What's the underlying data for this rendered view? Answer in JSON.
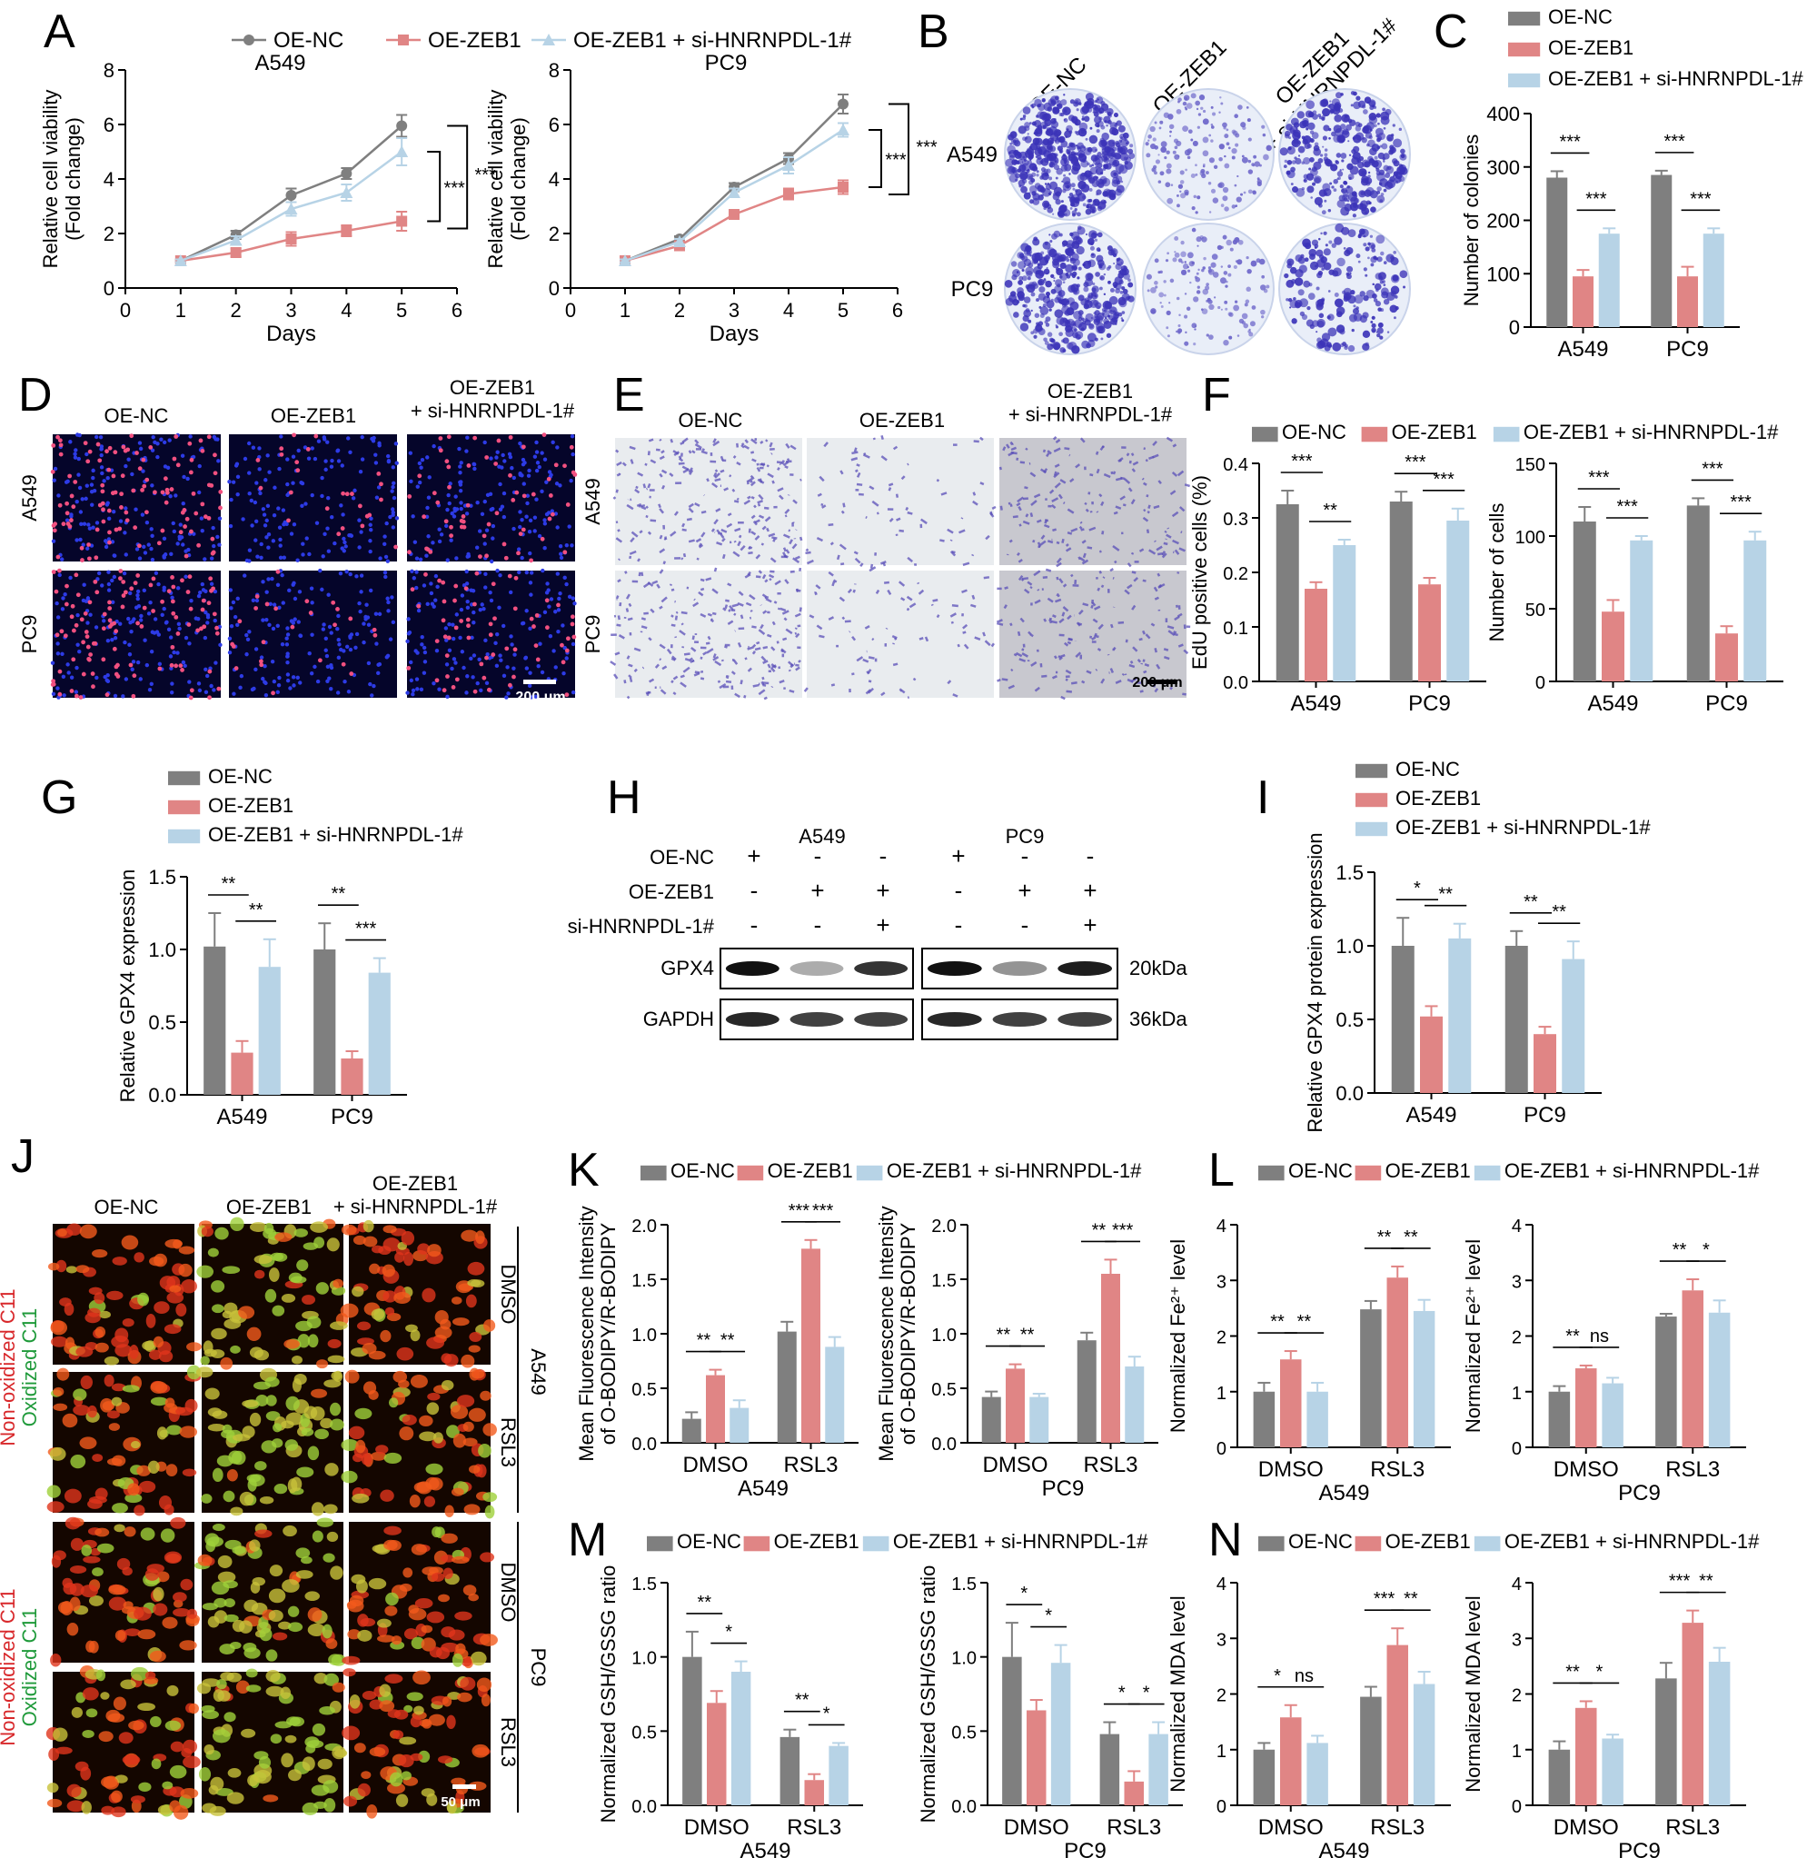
{
  "colors": {
    "oe_nc": "#7f7f7f",
    "oe_zeb1": "#e08585",
    "si": "#b7d3e6"
  },
  "series": [
    "OE-NC",
    "OE-ZEB1",
    "OE-ZEB1 + si-HNRNPDL-1#"
  ],
  "panels": {
    "A": {
      "letter": "A",
      "xlabel": "Days",
      "ylabel": "Relative cell viability (Fold change)",
      "charts": [
        {
          "title": "A549",
          "x": [
            1,
            2,
            3,
            4,
            5
          ],
          "series": [
            {
              "name": "OE-NC",
              "values": [
                1.0,
                1.95,
                3.4,
                4.2,
                5.95
              ],
              "err": [
                0.05,
                0.15,
                0.25,
                0.2,
                0.4
              ]
            },
            {
              "name": "OE-ZEB1",
              "values": [
                1.0,
                1.3,
                1.8,
                2.1,
                2.45
              ],
              "err": [
                0.05,
                0.15,
                0.25,
                0.2,
                0.35
              ]
            },
            {
              "name": "OE-ZEB1 + si-HNRNPDL-1#",
              "values": [
                1.0,
                1.75,
                2.9,
                3.5,
                5.0
              ],
              "err": [
                0.05,
                0.15,
                0.25,
                0.3,
                0.5
              ]
            }
          ],
          "ylim": [
            0,
            8
          ],
          "xlim": [
            0,
            6
          ],
          "sig": [
            "***",
            "***"
          ]
        },
        {
          "title": "PC9",
          "x": [
            1,
            2,
            3,
            4,
            5
          ],
          "series": [
            {
              "name": "OE-NC",
              "values": [
                1.0,
                1.8,
                3.7,
                4.75,
                6.75
              ],
              "err": [
                0.05,
                0.1,
                0.15,
                0.2,
                0.35
              ]
            },
            {
              "name": "OE-ZEB1",
              "values": [
                1.0,
                1.55,
                2.7,
                3.45,
                3.7
              ],
              "err": [
                0.05,
                0.1,
                0.15,
                0.2,
                0.25
              ]
            },
            {
              "name": "OE-ZEB1 + si-HNRNPDL-1#",
              "values": [
                1.0,
                1.7,
                3.5,
                4.5,
                5.8
              ],
              "err": [
                0.05,
                0.1,
                0.15,
                0.3,
                0.25
              ]
            }
          ],
          "ylim": [
            0,
            8
          ],
          "xlim": [
            0,
            6
          ],
          "sig": [
            "***",
            "***"
          ]
        }
      ]
    },
    "B": {
      "letter": "B",
      "cols": [
        "OE-NC",
        "OE-ZEB1",
        "OE-ZEB1\n+ si-HNRNPDL-1#"
      ],
      "rows": [
        "A549",
        "PC9"
      ]
    },
    "C": {
      "letter": "C",
      "ylabel": "Number of colonies",
      "ylim": [
        0,
        400
      ],
      "ticks": [
        0,
        100,
        200,
        300,
        400
      ],
      "groups": [
        "A549",
        "PC9"
      ],
      "values": [
        [
          280,
          95,
          175
        ],
        [
          285,
          95,
          175
        ]
      ],
      "err": [
        [
          12,
          12,
          10
        ],
        [
          8,
          18,
          10
        ]
      ],
      "sig": [
        [
          "***",
          "***"
        ],
        [
          "***",
          "***"
        ]
      ]
    },
    "D": {
      "letter": "D",
      "cols": [
        "OE-NC",
        "OE-ZEB1",
        "OE-ZEB1\n+ si-HNRNPDL-1#"
      ],
      "rows": [
        "A549",
        "PC9"
      ],
      "scale": "200 μm"
    },
    "E": {
      "letter": "E",
      "cols": [
        "OE-NC",
        "OE-ZEB1",
        "OE-ZEB1\n+ si-HNRNPDL-1#"
      ],
      "rows": [
        "A549",
        "PC9"
      ],
      "scale": "200 μm"
    },
    "F": {
      "letter": "F",
      "charts": [
        {
          "ylabel": "EdU positive cells (%)",
          "ylim": [
            0,
            0.4
          ],
          "ticks": [
            "0.0",
            "0.1",
            "0.2",
            "0.3",
            "0.4"
          ],
          "groups": [
            "A549",
            "PC9"
          ],
          "values": [
            [
              0.325,
              0.17,
              0.25
            ],
            [
              0.33,
              0.178,
              0.295
            ]
          ],
          "err": [
            [
              0.025,
              0.012,
              0.01
            ],
            [
              0.018,
              0.012,
              0.022
            ]
          ],
          "sig": [
            [
              "***",
              "**"
            ],
            [
              "***",
              "***"
            ]
          ]
        },
        {
          "ylabel": "Number of cells",
          "ylim": [
            0,
            150
          ],
          "ticks": [
            "0",
            "50",
            "100",
            "150"
          ],
          "groups": [
            "A549",
            "PC9"
          ],
          "values": [
            [
              110,
              48,
              97
            ],
            [
              121,
              33,
              97
            ]
          ],
          "err": [
            [
              10,
              8,
              3
            ],
            [
              5,
              5,
              6
            ]
          ],
          "sig": [
            [
              "***",
              "***"
            ],
            [
              "***",
              "***"
            ]
          ]
        }
      ]
    },
    "G": {
      "letter": "G",
      "ylabel": "Relative GPX4 expression",
      "ylim": [
        0,
        1.5
      ],
      "ticks": [
        "0.0",
        "0.5",
        "1.0",
        "1.5"
      ],
      "groups": [
        "A549",
        "PC9"
      ],
      "values": [
        [
          1.02,
          0.29,
          0.88
        ],
        [
          1.0,
          0.25,
          0.84
        ]
      ],
      "err": [
        [
          0.23,
          0.08,
          0.19
        ],
        [
          0.18,
          0.05,
          0.1
        ]
      ],
      "sig": [
        [
          "**",
          "**"
        ],
        [
          "**",
          "***"
        ]
      ]
    },
    "H": {
      "letter": "H",
      "groups": [
        "A549",
        "PC9"
      ],
      "rows": [
        {
          "label": "OE-NC",
          "marks": [
            "+",
            "-",
            "-",
            "+",
            "-",
            "-"
          ]
        },
        {
          "label": "OE-ZEB1",
          "marks": [
            "-",
            "+",
            "+",
            "-",
            "+",
            "+"
          ]
        },
        {
          "label": "si-HNRNPDL-1#",
          "marks": [
            "-",
            "-",
            "+",
            "-",
            "-",
            "+"
          ]
        }
      ],
      "blots": [
        {
          "name": "GPX4",
          "kda": "20kDa"
        },
        {
          "name": "GAPDH",
          "kda": "36kDa"
        }
      ]
    },
    "I": {
      "letter": "I",
      "ylabel": "Relative GPX4 protein expression",
      "ylim": [
        0,
        1.5
      ],
      "ticks": [
        "0.0",
        "0.5",
        "1.0",
        "1.5"
      ],
      "groups": [
        "A549",
        "PC9"
      ],
      "values": [
        [
          1.0,
          0.52,
          1.05
        ],
        [
          1.0,
          0.4,
          0.91
        ]
      ],
      "err": [
        [
          0.19,
          0.07,
          0.1
        ],
        [
          0.1,
          0.05,
          0.12
        ]
      ],
      "sig": [
        [
          "*",
          "**"
        ],
        [
          "**",
          "**"
        ]
      ]
    },
    "J": {
      "letter": "J",
      "cols": [
        "OE-NC",
        "OE-ZEB1",
        "OE-ZEB1\n+ si-HNRNPDL-1#"
      ],
      "rows": [
        "DMSO",
        "RSL3",
        "DMSO",
        "RSL3"
      ],
      "cells": [
        "A549",
        "PC9"
      ],
      "side_red": "Non-oxidized C11",
      "side_green": "Oxidized C11",
      "scale": "50 μm"
    },
    "K": {
      "letter": "K",
      "charts": [
        {
          "ylabel": "Mean Fluorescence Intensity\nof O-BODIPY/R-BODIPY",
          "cell": "A549",
          "ylim": [
            0,
            2.0
          ],
          "ticks": [
            "0.0",
            "0.5",
            "1.0",
            "1.5",
            "2.0"
          ],
          "groups": [
            "DMSO",
            "RSL3"
          ],
          "values": [
            [
              0.22,
              0.62,
              0.32
            ],
            [
              1.02,
              1.78,
              0.88
            ]
          ],
          "err": [
            [
              0.06,
              0.05,
              0.07
            ],
            [
              0.09,
              0.08,
              0.09
            ]
          ],
          "sig": [
            [
              "**",
              "**"
            ],
            [
              "***",
              "***"
            ]
          ]
        },
        {
          "ylabel": "Mean Fluorescence Intensity\nof O-BODIPY/R-BODIPY",
          "cell": "PC9",
          "ylim": [
            0,
            2.0
          ],
          "ticks": [
            "0.0",
            "0.5",
            "1.0",
            "1.5",
            "2.0"
          ],
          "groups": [
            "DMSO",
            "RSL3"
          ],
          "values": [
            [
              0.42,
              0.68,
              0.42
            ],
            [
              0.94,
              1.55,
              0.7
            ]
          ],
          "err": [
            [
              0.05,
              0.04,
              0.03
            ],
            [
              0.07,
              0.13,
              0.09
            ]
          ],
          "sig": [
            [
              "**",
              "**"
            ],
            [
              "**",
              "***"
            ]
          ]
        }
      ]
    },
    "L": {
      "letter": "L",
      "charts": [
        {
          "ylabel": "Normalized Fe²⁺ level",
          "cell": "A549",
          "ylim": [
            0,
            4
          ],
          "ticks": [
            "0",
            "1",
            "2",
            "3",
            "4"
          ],
          "groups": [
            "DMSO",
            "RSL3"
          ],
          "values": [
            [
              1.0,
              1.58,
              1.0
            ],
            [
              2.48,
              3.05,
              2.45
            ]
          ],
          "err": [
            [
              0.16,
              0.15,
              0.16
            ],
            [
              0.15,
              0.2,
              0.2
            ]
          ],
          "sig": [
            [
              "**",
              "**"
            ],
            [
              "**",
              "**"
            ]
          ]
        },
        {
          "ylabel": "Normalized Fe²⁺ level",
          "cell": "PC9",
          "ylim": [
            0,
            4
          ],
          "ticks": [
            "0",
            "1",
            "2",
            "3",
            "4"
          ],
          "groups": [
            "DMSO",
            "RSL3"
          ],
          "values": [
            [
              1.0,
              1.42,
              1.15
            ],
            [
              2.35,
              2.82,
              2.42
            ]
          ],
          "err": [
            [
              0.1,
              0.05,
              0.1
            ],
            [
              0.05,
              0.2,
              0.22
            ]
          ],
          "sig": [
            [
              "**",
              "ns"
            ],
            [
              "**",
              "*"
            ]
          ]
        }
      ]
    },
    "M": {
      "letter": "M",
      "charts": [
        {
          "ylabel": "Normalized GSH/GSSG ratio",
          "cell": "A549",
          "ylim": [
            0,
            1.5
          ],
          "ticks": [
            "0.0",
            "0.5",
            "1.0",
            "1.5"
          ],
          "groups": [
            "DMSO",
            "RSL3"
          ],
          "values": [
            [
              1.0,
              0.69,
              0.9
            ],
            [
              0.46,
              0.17,
              0.4
            ]
          ],
          "err": [
            [
              0.17,
              0.08,
              0.07
            ],
            [
              0.05,
              0.04,
              0.02
            ]
          ],
          "sig": [
            [
              "**",
              "*"
            ],
            [
              "**",
              "*"
            ]
          ]
        },
        {
          "ylabel": "Normalized GSH/GSSG ratio",
          "cell": "PC9",
          "ylim": [
            0,
            1.5
          ],
          "ticks": [
            "0.0",
            "0.5",
            "1.0",
            "1.5"
          ],
          "groups": [
            "DMSO",
            "RSL3"
          ],
          "values": [
            [
              1.0,
              0.64,
              0.96
            ],
            [
              0.48,
              0.16,
              0.48
            ]
          ],
          "err": [
            [
              0.23,
              0.07,
              0.12
            ],
            [
              0.08,
              0.07,
              0.08
            ]
          ],
          "sig": [
            [
              "*",
              "*"
            ],
            [
              "*",
              "*"
            ]
          ]
        }
      ]
    },
    "N": {
      "letter": "N",
      "charts": [
        {
          "ylabel": "Normalized MDA level",
          "cell": "A549",
          "ylim": [
            0,
            4
          ],
          "ticks": [
            "0",
            "1",
            "2",
            "3",
            "4"
          ],
          "groups": [
            "DMSO",
            "RSL3"
          ],
          "values": [
            [
              1.0,
              1.58,
              1.12
            ],
            [
              1.95,
              2.88,
              2.18
            ]
          ],
          "err": [
            [
              0.12,
              0.22,
              0.13
            ],
            [
              0.18,
              0.3,
              0.22
            ]
          ],
          "sig": [
            [
              "*",
              "ns"
            ],
            [
              "***",
              "**"
            ]
          ]
        },
        {
          "ylabel": "Normalized MDA level",
          "cell": "PC9",
          "ylim": [
            0,
            4
          ],
          "ticks": [
            "0",
            "1",
            "2",
            "3",
            "4"
          ],
          "groups": [
            "DMSO",
            "RSL3"
          ],
          "values": [
            [
              1.0,
              1.75,
              1.2
            ],
            [
              2.28,
              3.28,
              2.58
            ]
          ],
          "err": [
            [
              0.15,
              0.12,
              0.07
            ],
            [
              0.28,
              0.22,
              0.25
            ]
          ],
          "sig": [
            [
              "**",
              "*"
            ],
            [
              "***",
              "**"
            ]
          ]
        }
      ]
    }
  }
}
